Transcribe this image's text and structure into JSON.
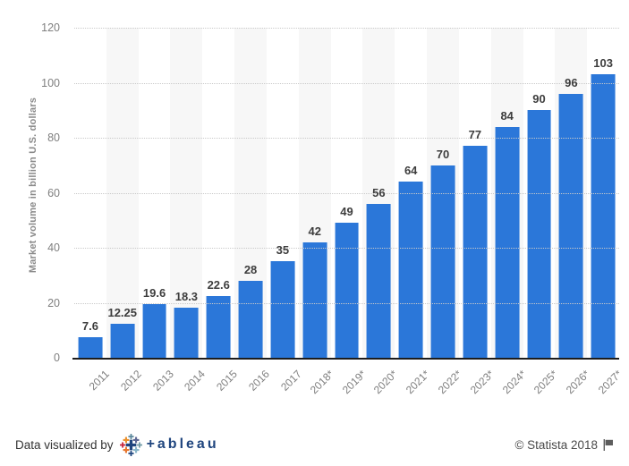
{
  "chart_data": {
    "type": "bar",
    "categories": [
      "2011",
      "2012",
      "2013",
      "2014",
      "2015",
      "2016",
      "2017",
      "2018*",
      "2019*",
      "2020*",
      "2021*",
      "2022*",
      "2023*",
      "2024*",
      "2025*",
      "2026*",
      "2027*"
    ],
    "values": [
      7.6,
      12.25,
      19.6,
      18.3,
      22.6,
      28,
      35,
      42,
      49,
      56,
      64,
      70,
      77,
      84,
      90,
      96,
      103
    ],
    "title": "",
    "xlabel": "",
    "ylabel": "Market volume in billion U.S. dollars",
    "ylim": [
      0,
      120
    ],
    "yticks": [
      0,
      20,
      40,
      60,
      80,
      100,
      120
    ],
    "grid": "horizontal-dotted",
    "legend": "none",
    "bar_color": "#2b77d9",
    "band_color": "#f7f7f7"
  },
  "footer": {
    "visualized_by": "Data visualized by",
    "tableau_wordmark": "+ableau",
    "statista_credit": "© Statista 2018"
  },
  "colors": {
    "bar": "#2b77d9",
    "column_band": "#f7f7f7",
    "gridline": "#c9c9c9",
    "axis_line": "#1d1d1d",
    "tick_label": "#7f7f7f",
    "value_label": "#3d3d3d",
    "tableau_navy": "#1f457e",
    "tableau_orange": "#eb912c",
    "tableau_red": "#c72037",
    "tableau_teal": "#7099a5"
  }
}
